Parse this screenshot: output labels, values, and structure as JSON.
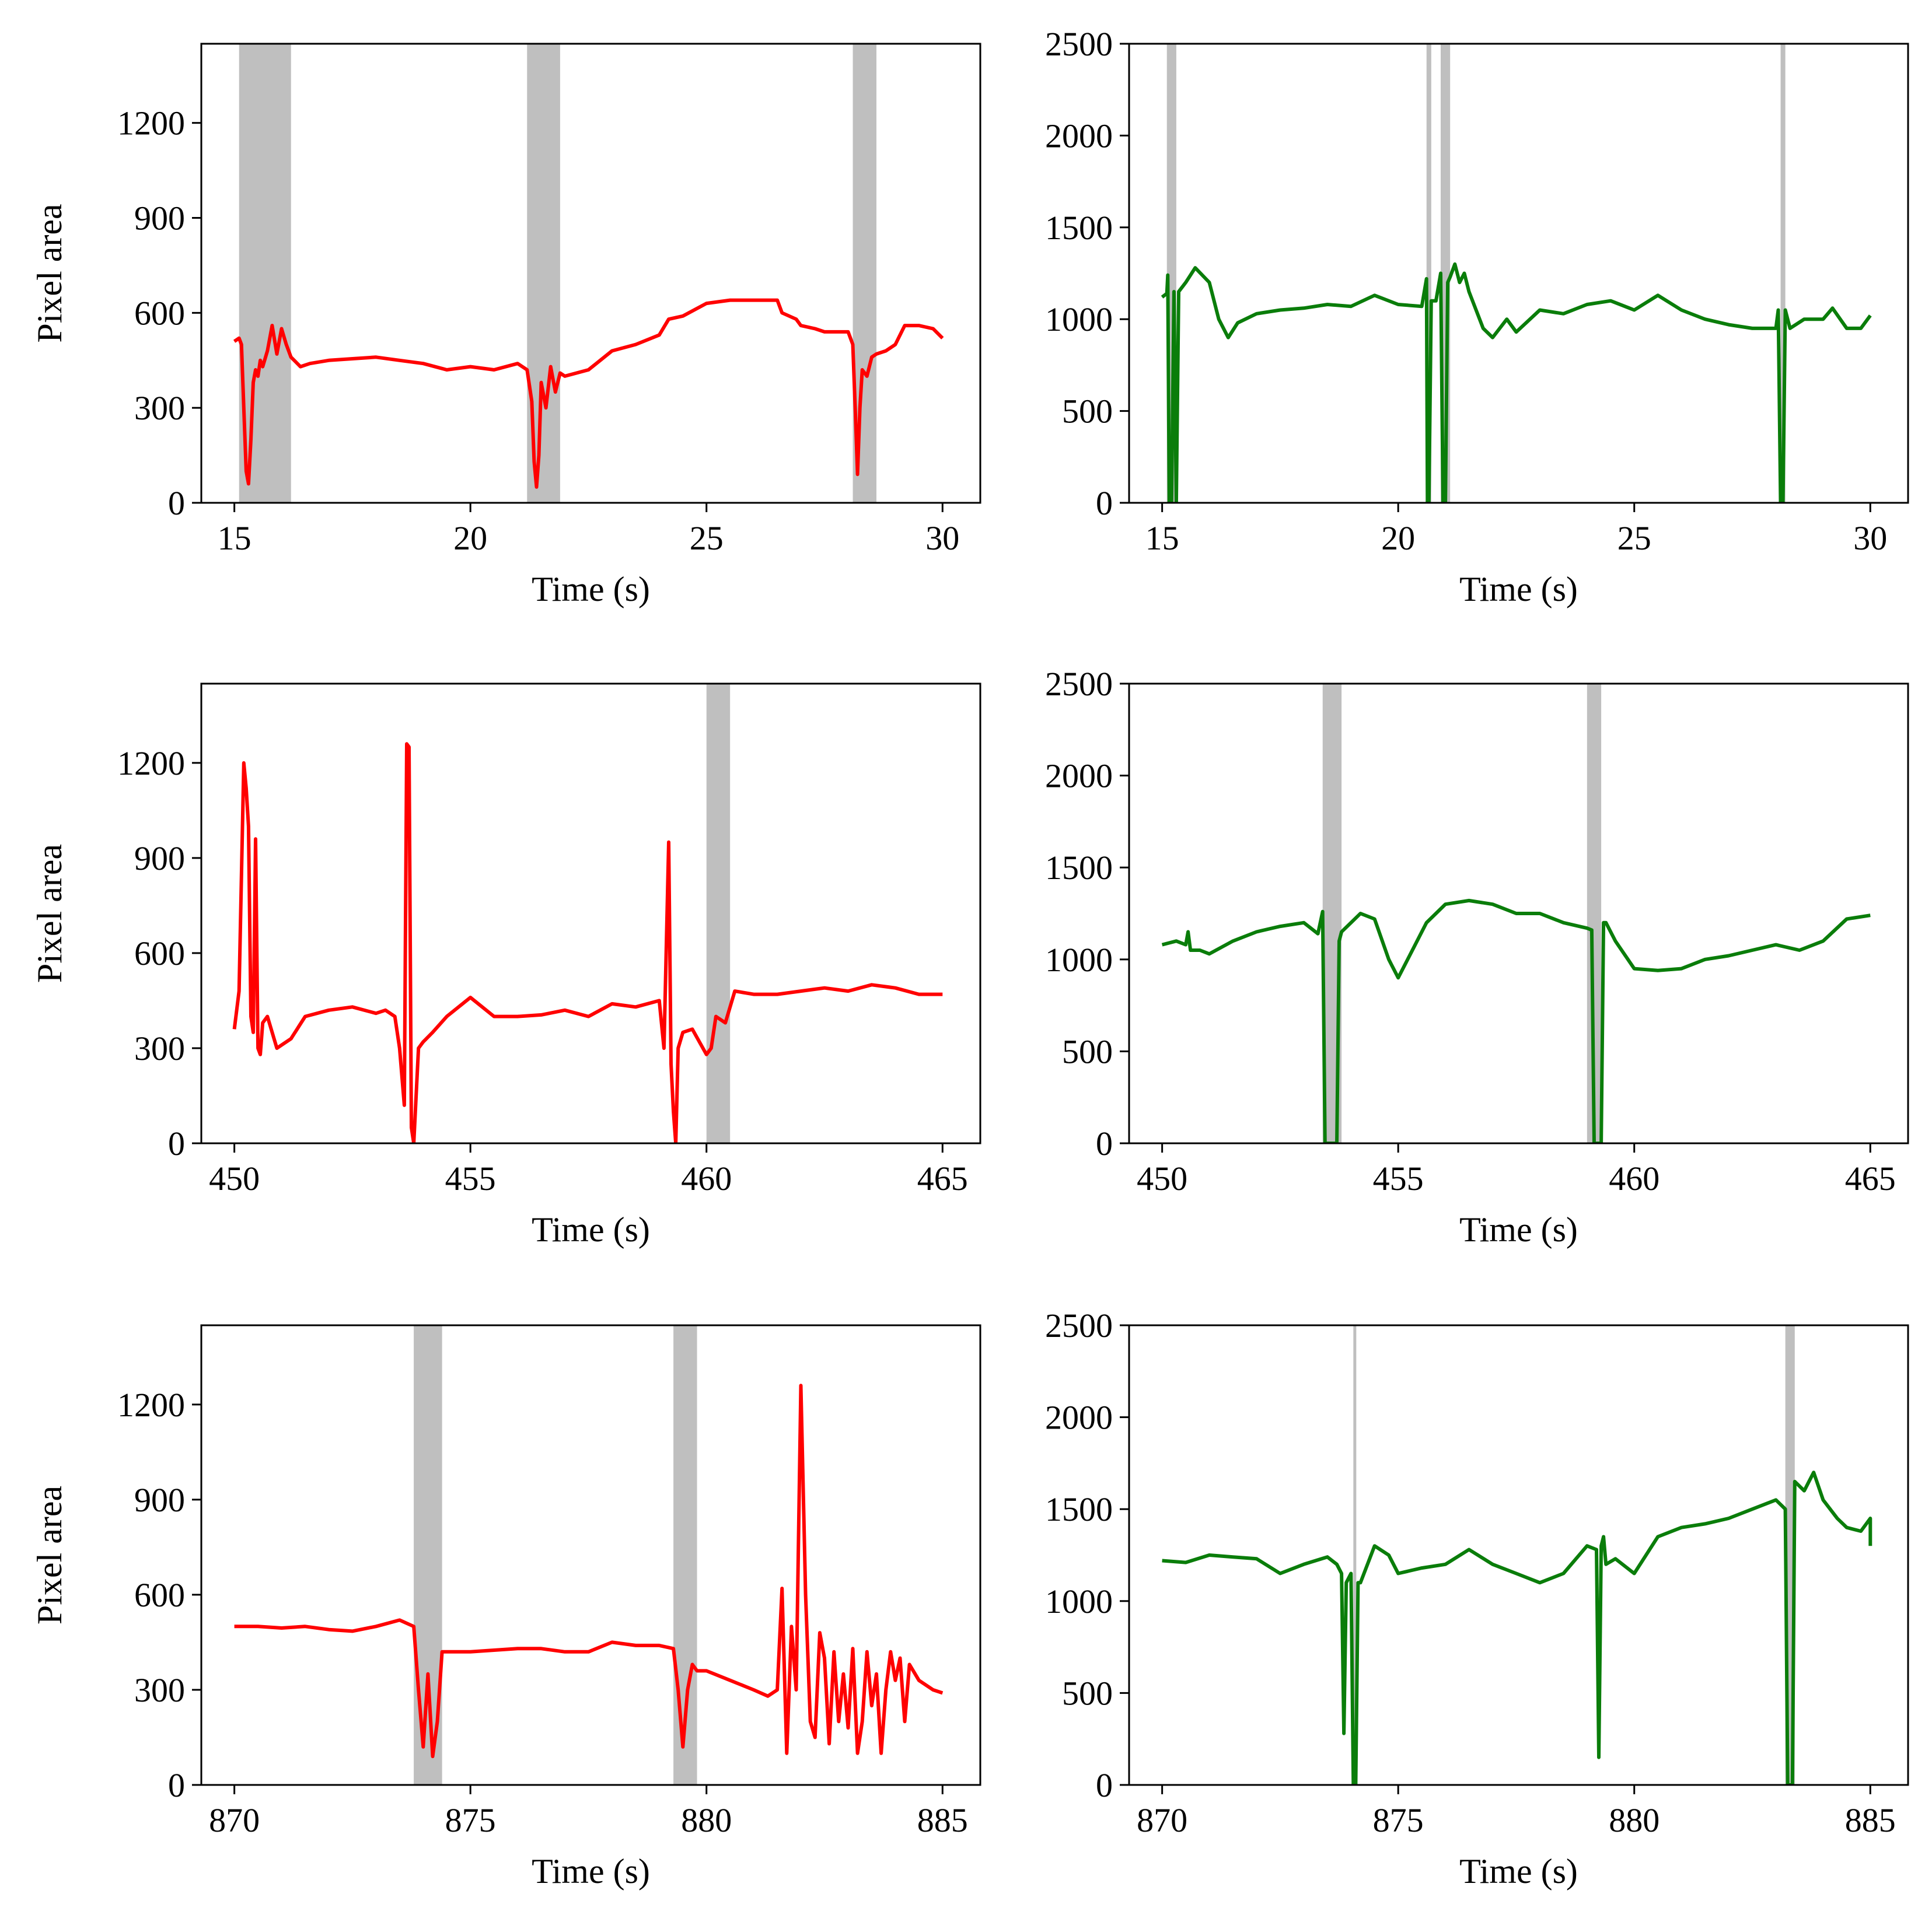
{
  "figure": {
    "description_colors": {
      "red_series": "#ff0000",
      "green_series": "#0a7d0a",
      "shade": "#bfbfbf",
      "axis": "#000000"
    }
  },
  "chart_data": [
    {
      "type": "line",
      "panel": "row1-left",
      "xlabel": "Time (s)",
      "ylabel": "Pixel area",
      "xlim": [
        14.3,
        30.8
      ],
      "ylim": [
        0,
        1450
      ],
      "xticks": [
        15,
        20,
        25,
        30
      ],
      "yticks": [
        0,
        300,
        600,
        900,
        1200
      ],
      "color": "#ff0000",
      "shaded_intervals": [
        [
          15.1,
          16.2
        ],
        [
          21.2,
          21.9
        ],
        [
          28.1,
          28.6
        ]
      ],
      "series": [
        {
          "name": "red",
          "x": [
            15.0,
            15.1,
            15.15,
            15.2,
            15.25,
            15.3,
            15.35,
            15.4,
            15.45,
            15.5,
            15.55,
            15.6,
            15.7,
            15.8,
            15.9,
            16.0,
            16.1,
            16.2,
            16.4,
            16.6,
            17,
            17.5,
            18,
            18.5,
            19,
            19.5,
            20,
            20.5,
            21,
            21.2,
            21.3,
            21.35,
            21.4,
            21.45,
            21.5,
            21.6,
            21.7,
            21.8,
            21.9,
            22,
            22.5,
            23,
            23.5,
            24,
            24.2,
            24.5,
            25,
            25.5,
            26,
            26.5,
            26.6,
            26.9,
            27,
            27.3,
            27.5,
            28,
            28.1,
            28.15,
            28.2,
            28.25,
            28.3,
            28.4,
            28.5,
            28.6,
            28.8,
            29,
            29.2,
            29.5,
            29.8,
            30.0
          ],
          "values": [
            510,
            520,
            500,
            300,
            100,
            60,
            200,
            380,
            420,
            400,
            450,
            430,
            480,
            560,
            470,
            550,
            500,
            460,
            430,
            440,
            450,
            455,
            460,
            450,
            440,
            420,
            430,
            420,
            440,
            420,
            320,
            130,
            50,
            150,
            380,
            300,
            430,
            350,
            410,
            400,
            420,
            480,
            500,
            530,
            580,
            590,
            630,
            640,
            640,
            640,
            600,
            580,
            560,
            550,
            540,
            540,
            500,
            300,
            90,
            300,
            420,
            400,
            460,
            470,
            480,
            500,
            560,
            560,
            550,
            520
          ]
        }
      ]
    },
    {
      "type": "line",
      "panel": "row1-right",
      "xlabel": "Time (s)",
      "ylabel": "",
      "xlim": [
        14.3,
        30.8
      ],
      "ylim": [
        0,
        2500
      ],
      "xticks": [
        15,
        20,
        25,
        30
      ],
      "yticks": [
        0,
        500,
        1000,
        1500,
        2000,
        2500
      ],
      "color": "#0a7d0a",
      "shaded_intervals": [
        [
          15.1,
          15.3
        ],
        [
          20.6,
          20.7
        ],
        [
          20.9,
          21.1
        ],
        [
          28.1,
          28.2
        ]
      ],
      "series": [
        {
          "name": "green",
          "x": [
            15.0,
            15.1,
            15.12,
            15.15,
            15.2,
            15.25,
            15.3,
            15.35,
            15.5,
            15.7,
            16.0,
            16.2,
            16.4,
            16.6,
            17,
            17.5,
            18,
            18.5,
            19,
            19.5,
            20,
            20.5,
            20.6,
            20.62,
            20.65,
            20.7,
            20.8,
            20.9,
            20.95,
            21.0,
            21.05,
            21.1,
            21.2,
            21.3,
            21.4,
            21.5,
            21.8,
            22,
            22.3,
            22.5,
            23,
            23.5,
            24,
            24.5,
            25,
            25.5,
            26,
            26.5,
            27,
            27.5,
            28,
            28.05,
            28.1,
            28.15,
            28.2,
            28.3,
            28.6,
            29,
            29.2,
            29.5,
            29.8,
            30.0
          ],
          "values": [
            1120,
            1140,
            1240,
            0,
            0,
            1150,
            0,
            1150,
            1200,
            1280,
            1200,
            1000,
            900,
            980,
            1030,
            1050,
            1060,
            1080,
            1070,
            1130,
            1080,
            1070,
            1220,
            0,
            0,
            1100,
            1100,
            1250,
            0,
            0,
            1200,
            1230,
            1300,
            1200,
            1250,
            1150,
            950,
            900,
            1000,
            930,
            1050,
            1030,
            1080,
            1100,
            1050,
            1130,
            1050,
            1000,
            970,
            950,
            950,
            1050,
            0,
            0,
            1050,
            950,
            1000,
            1000,
            1060,
            950,
            950,
            1020
          ]
        }
      ]
    },
    {
      "type": "line",
      "panel": "row2-left",
      "xlabel": "Time (s)",
      "ylabel": "Pixel area",
      "xlim": [
        449.3,
        465.8
      ],
      "ylim": [
        0,
        1450
      ],
      "xticks": [
        450,
        455,
        460,
        465
      ],
      "yticks": [
        0,
        300,
        600,
        900,
        1200
      ],
      "color": "#ff0000",
      "shaded_intervals": [
        [
          460.0,
          460.5
        ]
      ],
      "series": [
        {
          "name": "red",
          "x": [
            450.0,
            450.1,
            450.2,
            450.25,
            450.3,
            450.35,
            450.4,
            450.45,
            450.5,
            450.55,
            450.6,
            450.7,
            450.9,
            451.2,
            451.5,
            452,
            452.5,
            453,
            453.2,
            453.4,
            453.5,
            453.6,
            453.65,
            453.7,
            453.75,
            453.8,
            453.9,
            454,
            454.2,
            454.5,
            455,
            455.5,
            456,
            456.5,
            457,
            457.5,
            458,
            458.5,
            459,
            459.1,
            459.2,
            459.25,
            459.3,
            459.35,
            459.4,
            459.5,
            459.7,
            460,
            460.1,
            460.2,
            460.4,
            460.6,
            461,
            461.5,
            462,
            462.5,
            463,
            463.5,
            464,
            464.5,
            465.0
          ],
          "values": [
            360,
            480,
            1200,
            1120,
            1000,
            400,
            350,
            960,
            300,
            280,
            380,
            400,
            300,
            330,
            400,
            420,
            430,
            410,
            420,
            400,
            300,
            120,
            1260,
            1250,
            50,
            0,
            300,
            320,
            350,
            400,
            460,
            400,
            400,
            405,
            420,
            400,
            440,
            430,
            450,
            300,
            950,
            250,
            100,
            0,
            300,
            350,
            360,
            280,
            300,
            400,
            380,
            480,
            470,
            470,
            480,
            490,
            480,
            500,
            490,
            470,
            470
          ]
        }
      ]
    },
    {
      "type": "line",
      "panel": "row2-right",
      "xlabel": "Time (s)",
      "ylabel": "",
      "xlim": [
        449.3,
        465.8
      ],
      "ylim": [
        0,
        2500
      ],
      "xticks": [
        450,
        455,
        460,
        465
      ],
      "yticks": [
        0,
        500,
        1000,
        1500,
        2000,
        2500
      ],
      "color": "#0a7d0a",
      "shaded_intervals": [
        [
          453.4,
          453.8
        ],
        [
          459.0,
          459.3
        ]
      ],
      "series": [
        {
          "name": "green",
          "x": [
            450.0,
            450.3,
            450.5,
            450.55,
            450.6,
            450.8,
            451,
            451.5,
            452,
            452.5,
            453,
            453.3,
            453.4,
            453.45,
            453.5,
            453.7,
            453.75,
            453.8,
            454,
            454.2,
            454.5,
            454.8,
            455,
            455.3,
            455.6,
            456,
            456.5,
            457,
            457.5,
            458,
            458.5,
            459,
            459.1,
            459.15,
            459.2,
            459.3,
            459.35,
            459.4,
            459.6,
            460,
            460.5,
            461,
            461.5,
            462,
            462.5,
            463,
            463.5,
            464,
            464.5,
            465.0
          ],
          "values": [
            1080,
            1100,
            1080,
            1150,
            1050,
            1050,
            1030,
            1100,
            1150,
            1180,
            1200,
            1140,
            1260,
            0,
            0,
            0,
            1100,
            1150,
            1200,
            1250,
            1220,
            1000,
            900,
            1050,
            1200,
            1300,
            1320,
            1300,
            1250,
            1250,
            1200,
            1170,
            1160,
            0,
            0,
            0,
            1200,
            1200,
            1100,
            950,
            940,
            950,
            1000,
            1020,
            1050,
            1080,
            1050,
            1100,
            1220,
            1240
          ]
        }
      ]
    },
    {
      "type": "line",
      "panel": "row3-left",
      "xlabel": "Time (s)",
      "ylabel": "Pixel area",
      "xlim": [
        869.3,
        885.8
      ],
      "ylim": [
        0,
        1450
      ],
      "xticks": [
        870,
        875,
        880,
        885
      ],
      "yticks": [
        0,
        300,
        600,
        900,
        1200
      ],
      "color": "#ff0000",
      "shaded_intervals": [
        [
          873.8,
          874.4
        ],
        [
          879.3,
          879.8
        ]
      ],
      "series": [
        {
          "name": "red",
          "x": [
            870.0,
            870.5,
            871,
            871.5,
            872,
            872.5,
            873,
            873.5,
            873.8,
            873.9,
            874,
            874.1,
            874.2,
            874.3,
            874.4,
            874.5,
            875,
            875.5,
            876,
            876.5,
            877,
            877.5,
            878,
            878.5,
            879,
            879.3,
            879.4,
            879.5,
            879.6,
            879.7,
            879.8,
            880,
            880.5,
            881,
            881.3,
            881.5,
            881.6,
            881.7,
            881.8,
            881.9,
            882,
            882.1,
            882.2,
            882.3,
            882.4,
            882.5,
            882.6,
            882.7,
            882.8,
            882.9,
            883,
            883.1,
            883.2,
            883.3,
            883.4,
            883.5,
            883.6,
            883.7,
            883.8,
            883.9,
            884,
            884.1,
            884.2,
            884.3,
            884.5,
            884.8,
            885.0
          ],
          "values": [
            500,
            500,
            495,
            500,
            490,
            485,
            500,
            520,
            500,
            300,
            120,
            350,
            90,
            200,
            420,
            420,
            420,
            425,
            430,
            430,
            420,
            420,
            450,
            440,
            440,
            430,
            300,
            120,
            300,
            380,
            360,
            360,
            330,
            300,
            280,
            300,
            620,
            100,
            500,
            300,
            1260,
            600,
            200,
            150,
            480,
            400,
            130,
            420,
            200,
            350,
            180,
            430,
            100,
            200,
            420,
            250,
            350,
            100,
            300,
            420,
            330,
            400,
            200,
            380,
            330,
            300,
            290
          ]
        }
      ]
    },
    {
      "type": "line",
      "panel": "row3-right",
      "xlabel": "Time (s)",
      "ylabel": "",
      "xlim": [
        869.3,
        885.8
      ],
      "ylim": [
        0,
        2500
      ],
      "xticks": [
        870,
        875,
        880,
        885
      ],
      "yticks": [
        0,
        500,
        1000,
        1500,
        2000,
        2500
      ],
      "color": "#0a7d0a",
      "shaded_intervals": [
        [
          874.05,
          874.1
        ],
        [
          883.2,
          883.4
        ]
      ],
      "series": [
        {
          "name": "green",
          "x": [
            870.0,
            870.5,
            871,
            871.5,
            872,
            872.5,
            873,
            873.5,
            873.7,
            873.8,
            873.85,
            873.9,
            874,
            874.05,
            874.1,
            874.15,
            874.2,
            874.5,
            874.8,
            875,
            875.5,
            876,
            876.5,
            877,
            877.5,
            878,
            878.5,
            879,
            879.2,
            879.25,
            879.3,
            879.35,
            879.4,
            879.6,
            880,
            880.5,
            881,
            881.5,
            882,
            882.5,
            883,
            883.2,
            883.25,
            883.3,
            883.35,
            883.4,
            883.6,
            883.8,
            884,
            884.3,
            884.5,
            884.8,
            885,
            885.0
          ],
          "values": [
            1220,
            1210,
            1250,
            1240,
            1230,
            1150,
            1200,
            1240,
            1200,
            1150,
            280,
            1100,
            1150,
            0,
            0,
            1100,
            1100,
            1300,
            1250,
            1150,
            1180,
            1200,
            1280,
            1200,
            1150,
            1100,
            1150,
            1300,
            1280,
            150,
            1300,
            1350,
            1200,
            1230,
            1150,
            1350,
            1400,
            1420,
            1450,
            1500,
            1550,
            1500,
            0,
            0,
            0,
            1650,
            1600,
            1700,
            1550,
            1450,
            1400,
            1380,
            1450,
            1300
          ]
        }
      ]
    }
  ]
}
